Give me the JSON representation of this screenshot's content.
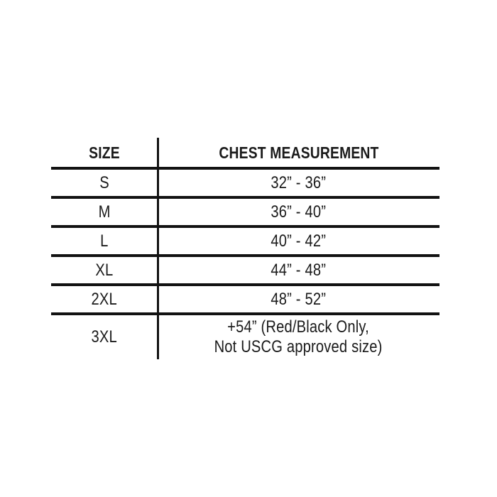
{
  "colors": {
    "background": "#ffffff",
    "line": "#121212",
    "text": "#1b1b1b"
  },
  "chart_data": {
    "type": "table",
    "columns": [
      "SIZE",
      "CHEST MEASUREMENT"
    ],
    "rows": [
      [
        "S",
        "32” - 36”"
      ],
      [
        "M",
        "36” - 40”"
      ],
      [
        "L",
        "40” - 42”"
      ],
      [
        "XL",
        "44” - 48”"
      ],
      [
        "2XL",
        "48” - 52”"
      ],
      [
        "3XL",
        "+54” (Red/Black Only,\nNot USCG approved size)"
      ]
    ]
  }
}
